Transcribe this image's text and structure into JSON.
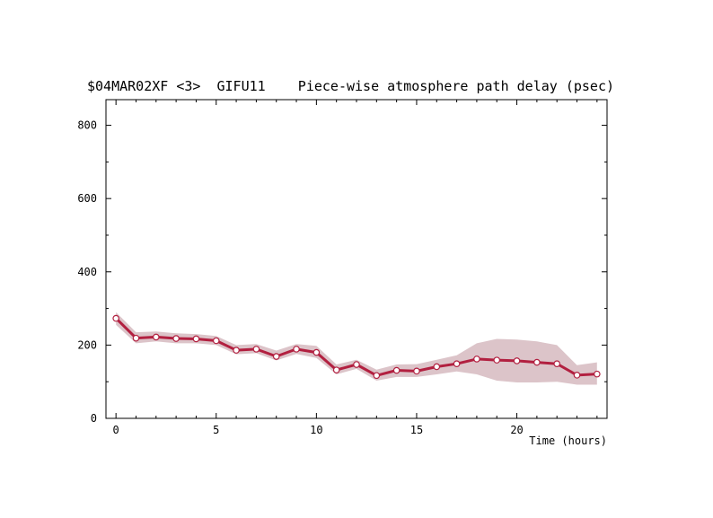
{
  "header": {
    "source": "$04MAR02XF <3>",
    "station": "GIFU11",
    "description": "Piece-wise atmosphere path delay (psec)"
  },
  "chart_data": {
    "type": "line",
    "title": "$04MAR02XF <3>  GIFU11    Piece-wise atmosphere path delay (psec)",
    "xlabel": "Time (hours)",
    "ylabel": "",
    "xlim": [
      -0.5,
      24.5
    ],
    "ylim": [
      0,
      870
    ],
    "x_ticks": [
      0,
      5,
      10,
      15,
      20
    ],
    "y_ticks": [
      0,
      200,
      400,
      600,
      800
    ],
    "grid": false,
    "series": [
      {
        "x": [
          0,
          1,
          2,
          3,
          4,
          5,
          6,
          7,
          8,
          9,
          10,
          11,
          12,
          13,
          14,
          15,
          16,
          17,
          18,
          19,
          20,
          21,
          22,
          23,
          24
        ],
        "values": [
          273,
          219,
          222,
          218,
          217,
          212,
          186,
          189,
          169,
          189,
          180,
          132,
          147,
          117,
          131,
          129,
          141,
          149,
          162,
          159,
          157,
          153,
          149,
          118,
          121
        ],
        "lower": [
          255,
          205,
          210,
          205,
          205,
          200,
          175,
          178,
          158,
          176,
          165,
          120,
          135,
          103,
          113,
          113,
          120,
          128,
          120,
          103,
          98,
          98,
          100,
          92,
          92
        ],
        "upper": [
          290,
          235,
          237,
          232,
          230,
          225,
          200,
          203,
          185,
          203,
          198,
          147,
          160,
          133,
          147,
          148,
          160,
          172,
          205,
          217,
          215,
          210,
          200,
          145,
          153
        ],
        "line_color": "#b22040",
        "band_color": "#dcc4c9",
        "marker": "open-circle"
      }
    ]
  }
}
